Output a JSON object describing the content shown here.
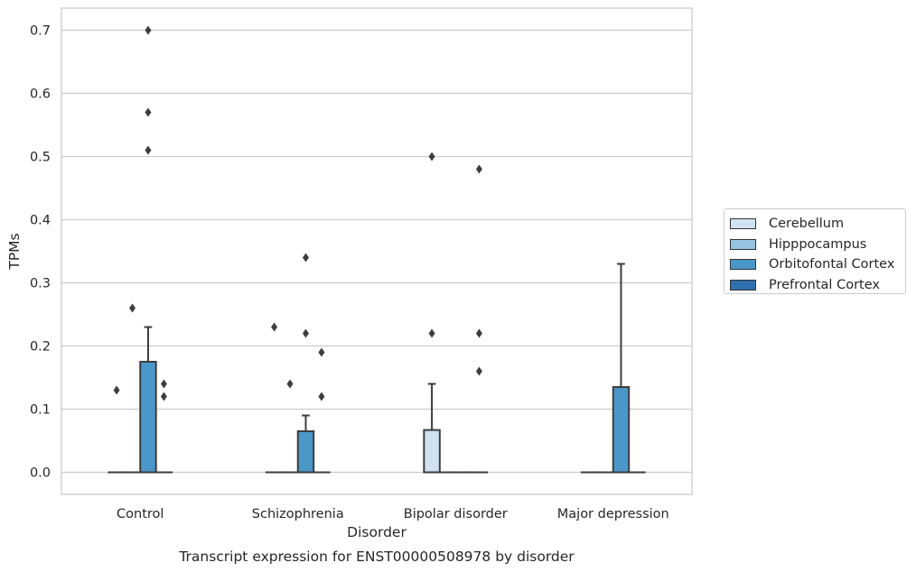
{
  "chart_data": {
    "type": "box",
    "title": "Transcript expression for ENST00000508978 by disorder",
    "xlabel": "Disorder",
    "ylabel": "TPMs",
    "ylim": [
      -0.035,
      0.735
    ],
    "yticks": [
      0.0,
      0.1,
      0.2,
      0.3,
      0.4,
      0.5,
      0.6,
      0.7
    ],
    "ytick_labels": [
      "0.0",
      "0.1",
      "0.2",
      "0.3",
      "0.4",
      "0.5",
      "0.6",
      "0.7"
    ],
    "categories": [
      "Control",
      "Schizophrenia",
      "Bipolar disorder",
      "Major depression"
    ],
    "grid": "horizontal",
    "legend_position": "right",
    "series": [
      {
        "name": "Cerebellum",
        "color": "#d0e1f2",
        "boxes": [
          {
            "q1": 0,
            "median": 0,
            "q3": 0,
            "whisker_low": 0,
            "whisker_high": 0,
            "outliers": [
              0.13
            ]
          },
          {
            "q1": 0,
            "median": 0,
            "q3": 0,
            "whisker_low": 0,
            "whisker_high": 0,
            "outliers": [
              0.23
            ]
          },
          {
            "q1": 0,
            "median": 0,
            "q3": 0.067,
            "whisker_low": 0,
            "whisker_high": 0.14,
            "outliers": [
              0.22,
              0.5
            ]
          },
          {
            "q1": 0,
            "median": 0,
            "q3": 0,
            "whisker_low": 0,
            "whisker_high": 0,
            "outliers": []
          }
        ]
      },
      {
        "name": "Hipppocampus",
        "color": "#94c4df",
        "boxes": [
          {
            "q1": 0,
            "median": 0,
            "q3": 0,
            "whisker_low": 0,
            "whisker_high": 0,
            "outliers": [
              0.26
            ]
          },
          {
            "q1": 0,
            "median": 0,
            "q3": 0,
            "whisker_low": 0,
            "whisker_high": 0,
            "outliers": [
              0.14
            ]
          },
          {
            "q1": 0,
            "median": 0,
            "q3": 0,
            "whisker_low": 0,
            "whisker_high": 0,
            "outliers": []
          },
          {
            "q1": 0,
            "median": 0,
            "q3": 0,
            "whisker_low": 0,
            "whisker_high": 0,
            "outliers": []
          }
        ]
      },
      {
        "name": "Orbitofontal Cortex",
        "color": "#4a98c9",
        "boxes": [
          {
            "q1": 0,
            "median": 0,
            "q3": 0.175,
            "whisker_low": 0,
            "whisker_high": 0.23,
            "outliers": [
              0.51,
              0.57,
              0.7
            ]
          },
          {
            "q1": 0,
            "median": 0,
            "q3": 0.065,
            "whisker_low": 0,
            "whisker_high": 0.09,
            "outliers": [
              0.22,
              0.34
            ]
          },
          {
            "q1": 0,
            "median": 0,
            "q3": 0,
            "whisker_low": 0,
            "whisker_high": 0,
            "outliers": []
          },
          {
            "q1": 0,
            "median": 0,
            "q3": 0.135,
            "whisker_low": 0,
            "whisker_high": 0.33,
            "outliers": []
          }
        ]
      },
      {
        "name": "Prefrontal Cortex",
        "color": "#2e6fae",
        "boxes": [
          {
            "q1": 0,
            "median": 0,
            "q3": 0,
            "whisker_low": 0,
            "whisker_high": 0,
            "outliers": [
              0.12,
              0.14
            ]
          },
          {
            "q1": 0,
            "median": 0,
            "q3": 0,
            "whisker_low": 0,
            "whisker_high": 0,
            "outliers": [
              0.12,
              0.19
            ]
          },
          {
            "q1": 0,
            "median": 0,
            "q3": 0,
            "whisker_low": 0,
            "whisker_high": 0,
            "outliers": [
              0.16,
              0.22,
              0.48
            ]
          },
          {
            "q1": 0,
            "median": 0,
            "q3": 0,
            "whisker_low": 0,
            "whisker_high": 0,
            "outliers": []
          }
        ]
      }
    ]
  }
}
